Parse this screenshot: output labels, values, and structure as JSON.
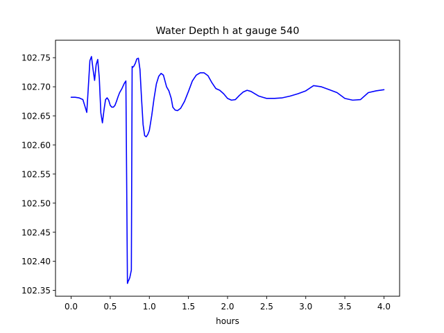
{
  "chart_data": {
    "type": "line",
    "title": "Water Depth h at gauge 540",
    "xlabel": "hours",
    "ylabel": "",
    "xlim": [
      -0.2,
      4.2
    ],
    "ylim": [
      102.34,
      102.78
    ],
    "grid": false,
    "x_ticks": [
      0.0,
      0.5,
      1.0,
      1.5,
      2.0,
      2.5,
      3.0,
      3.5,
      4.0
    ],
    "x_tick_labels": [
      "0.0",
      "0.5",
      "1.0",
      "1.5",
      "2.0",
      "2.5",
      "3.0",
      "3.5",
      "4.0"
    ],
    "y_ticks": [
      102.35,
      102.4,
      102.45,
      102.5,
      102.55,
      102.6,
      102.65,
      102.7,
      102.75
    ],
    "y_tick_labels": [
      "102.35",
      "102.40",
      "102.45",
      "102.50",
      "102.55",
      "102.60",
      "102.65",
      "102.70",
      "102.75"
    ],
    "series": [
      {
        "color": "#0000ff",
        "x": [
          0.0,
          0.05,
          0.1,
          0.15,
          0.18,
          0.2,
          0.22,
          0.24,
          0.26,
          0.28,
          0.3,
          0.32,
          0.34,
          0.36,
          0.38,
          0.4,
          0.42,
          0.44,
          0.46,
          0.48,
          0.5,
          0.52,
          0.54,
          0.56,
          0.58,
          0.6,
          0.62,
          0.65,
          0.68,
          0.7,
          0.72,
          0.73,
          0.735,
          0.75,
          0.77,
          0.78,
          0.785,
          0.79,
          0.8,
          0.82,
          0.84,
          0.86,
          0.88,
          0.9,
          0.92,
          0.94,
          0.96,
          0.98,
          1.0,
          1.03,
          1.06,
          1.09,
          1.12,
          1.15,
          1.18,
          1.2,
          1.22,
          1.25,
          1.28,
          1.3,
          1.33,
          1.36,
          1.4,
          1.45,
          1.5,
          1.55,
          1.6,
          1.65,
          1.7,
          1.75,
          1.8,
          1.85,
          1.9,
          1.95,
          2.0,
          2.05,
          2.1,
          2.15,
          2.2,
          2.25,
          2.3,
          2.4,
          2.5,
          2.6,
          2.7,
          2.8,
          2.9,
          3.0,
          3.1,
          3.2,
          3.3,
          3.4,
          3.5,
          3.6,
          3.7,
          3.8,
          3.9,
          4.0
        ],
        "y": [
          102.682,
          102.682,
          102.681,
          102.678,
          102.665,
          102.656,
          102.7,
          102.745,
          102.752,
          102.73,
          102.711,
          102.738,
          102.747,
          102.715,
          102.655,
          102.638,
          102.66,
          102.678,
          102.681,
          102.677,
          102.668,
          102.665,
          102.665,
          102.668,
          102.675,
          102.683,
          102.69,
          102.697,
          102.706,
          102.71,
          102.362,
          102.366,
          102.367,
          102.372,
          102.385,
          102.735,
          102.733,
          102.734,
          102.735,
          102.74,
          102.748,
          102.749,
          102.73,
          102.68,
          102.635,
          102.616,
          102.614,
          102.618,
          102.625,
          102.65,
          102.68,
          102.705,
          102.718,
          102.723,
          102.72,
          102.71,
          102.7,
          102.693,
          102.68,
          102.665,
          102.66,
          102.659,
          102.663,
          102.675,
          102.692,
          102.71,
          102.72,
          102.724,
          102.724,
          102.719,
          102.707,
          102.697,
          102.694,
          102.688,
          102.68,
          102.677,
          102.678,
          102.685,
          102.691,
          102.694,
          102.692,
          102.684,
          102.68,
          102.68,
          102.681,
          102.684,
          102.688,
          102.693,
          102.702,
          102.7,
          102.695,
          102.69,
          102.68,
          102.677,
          102.678,
          102.69,
          102.693,
          102.695
        ]
      }
    ]
  }
}
